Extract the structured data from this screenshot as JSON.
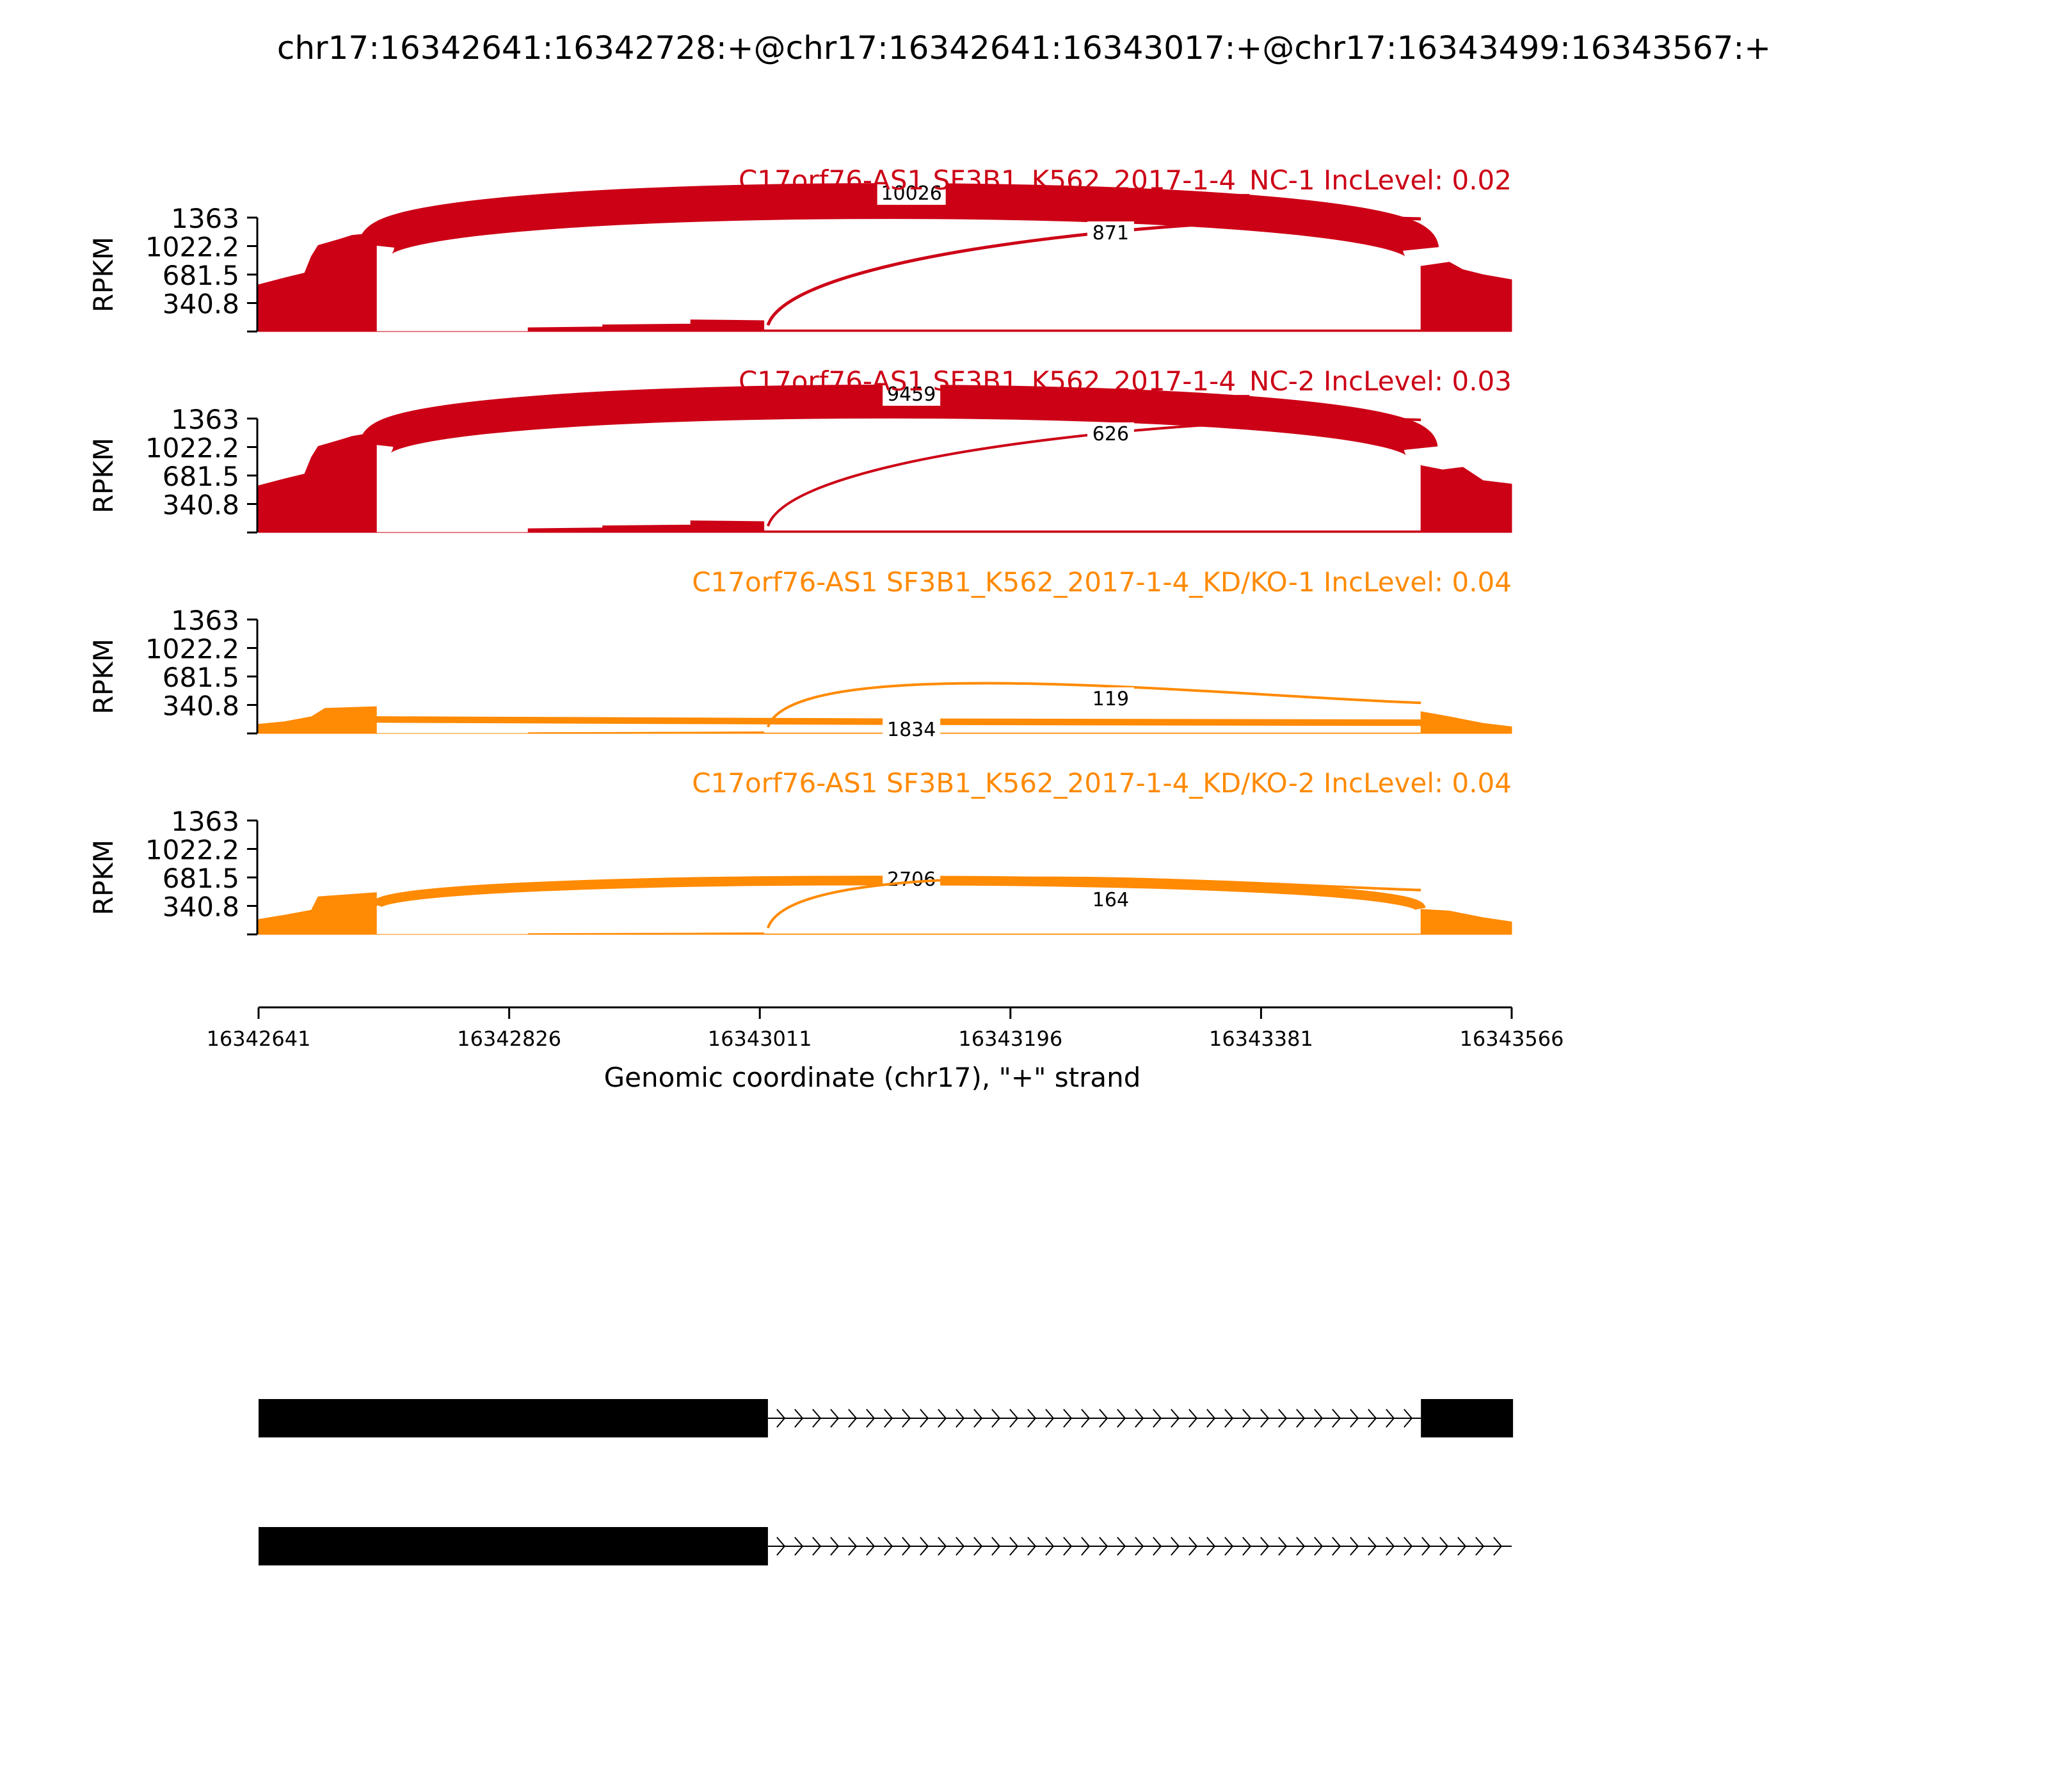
{
  "title": "chr17:16342641:16342728:+@chr17:16342641:16343017:+@chr17:16343499:16343567:+",
  "colors": {
    "nc": "#cc0116",
    "kd": "#ff8a03",
    "axis": "#000000",
    "gene": "#000000"
  },
  "chart_data": {
    "type": "area",
    "xlabel": "Genomic coordinate (chr17), \"+\" strand",
    "x_ticks": [
      "16342641",
      "16342826",
      "16343011",
      "16343196",
      "16343381",
      "16343566"
    ],
    "xlim": [
      16342641,
      16343566
    ],
    "ylabel": "RPKM",
    "y_ticks": [
      "340.8",
      "681.5",
      "1022.2",
      "1363"
    ],
    "ylim": [
      0,
      1363
    ],
    "samples": [
      {
        "title": "C17orf76-AS1 SF3B1_K562_2017-1-4_NC-1 IncLevel: 0.02",
        "color": "#cc0116",
        "coverage": [
          [
            16342641,
            560
          ],
          [
            16342660,
            640
          ],
          [
            16342675,
            700
          ],
          [
            16342680,
            900
          ],
          [
            16342685,
            1030
          ],
          [
            16342700,
            1100
          ],
          [
            16342710,
            1150
          ],
          [
            16342728,
            1180
          ],
          [
            16342728,
            0
          ],
          [
            16342840,
            0
          ],
          [
            16342840,
            45
          ],
          [
            16342895,
            55
          ],
          [
            16342895,
            80
          ],
          [
            16342960,
            90
          ],
          [
            16342960,
            140
          ],
          [
            16343014,
            130
          ],
          [
            16343014,
            20
          ],
          [
            16343499,
            20
          ],
          [
            16343499,
            780
          ],
          [
            16343520,
            830
          ],
          [
            16343530,
            740
          ],
          [
            16343545,
            680
          ],
          [
            16343566,
            620
          ]
        ],
        "junctions": [
          {
            "label": "10026",
            "from": 16342728,
            "to": 16343499,
            "weight": 10026
          },
          {
            "label": "871",
            "from": 16343017,
            "to": 16343499,
            "weight": 871
          }
        ]
      },
      {
        "title": "C17orf76-AS1 SF3B1_K562_2017-1-4_NC-2 IncLevel: 0.03",
        "color": "#cc0116",
        "coverage": [
          [
            16342641,
            560
          ],
          [
            16342660,
            640
          ],
          [
            16342675,
            700
          ],
          [
            16342680,
            900
          ],
          [
            16342685,
            1030
          ],
          [
            16342700,
            1100
          ],
          [
            16342710,
            1150
          ],
          [
            16342728,
            1200
          ],
          [
            16342728,
            0
          ],
          [
            16342840,
            0
          ],
          [
            16342840,
            45
          ],
          [
            16342895,
            55
          ],
          [
            16342895,
            80
          ],
          [
            16342960,
            90
          ],
          [
            16342960,
            140
          ],
          [
            16343014,
            130
          ],
          [
            16343014,
            20
          ],
          [
            16343499,
            20
          ],
          [
            16343499,
            800
          ],
          [
            16343515,
            750
          ],
          [
            16343530,
            780
          ],
          [
            16343545,
            620
          ],
          [
            16343566,
            580
          ]
        ],
        "junctions": [
          {
            "label": "9459",
            "from": 16342728,
            "to": 16343499,
            "weight": 9459
          },
          {
            "label": "626",
            "from": 16343017,
            "to": 16343499,
            "weight": 626
          }
        ]
      },
      {
        "title": "C17orf76-AS1 SF3B1_K562_2017-1-4_KD/KO-1 IncLevel: 0.04",
        "color": "#ff8a03",
        "coverage": [
          [
            16342641,
            110
          ],
          [
            16342660,
            140
          ],
          [
            16342680,
            200
          ],
          [
            16342690,
            300
          ],
          [
            16342728,
            320
          ],
          [
            16342728,
            0
          ],
          [
            16342840,
            0
          ],
          [
            16342840,
            10
          ],
          [
            16342960,
            15
          ],
          [
            16343014,
            20
          ],
          [
            16343014,
            5
          ],
          [
            16343499,
            5
          ],
          [
            16343499,
            260
          ],
          [
            16343520,
            200
          ],
          [
            16343545,
            120
          ],
          [
            16343566,
            80
          ]
        ],
        "junctions": [
          {
            "label": "1834",
            "from": 16342728,
            "to": 16343499,
            "weight": 1834
          },
          {
            "label": "119",
            "from": 16343017,
            "to": 16343499,
            "weight": 119
          }
        ]
      },
      {
        "title": "C17orf76-AS1 SF3B1_K562_2017-1-4_KD/KO-2 IncLevel: 0.04",
        "color": "#ff8a03",
        "coverage": [
          [
            16342641,
            180
          ],
          [
            16342660,
            230
          ],
          [
            16342680,
            290
          ],
          [
            16342685,
            450
          ],
          [
            16342728,
            500
          ],
          [
            16342728,
            0
          ],
          [
            16342840,
            0
          ],
          [
            16342840,
            10
          ],
          [
            16342960,
            15
          ],
          [
            16343014,
            20
          ],
          [
            16343014,
            5
          ],
          [
            16343499,
            5
          ],
          [
            16343499,
            300
          ],
          [
            16343520,
            280
          ],
          [
            16343545,
            200
          ],
          [
            16343566,
            150
          ]
        ],
        "junctions": [
          {
            "label": "2706",
            "from": 16342728,
            "to": 16343499,
            "weight": 2706
          },
          {
            "label": "164",
            "from": 16343017,
            "to": 16343499,
            "weight": 164
          }
        ]
      }
    ],
    "transcripts": [
      {
        "exons": [
          [
            16342641,
            16343017
          ],
          [
            16343499,
            16343567
          ]
        ],
        "strand": "+"
      },
      {
        "exons": [
          [
            16342641,
            16343017
          ]
        ],
        "strand": "+"
      }
    ]
  }
}
